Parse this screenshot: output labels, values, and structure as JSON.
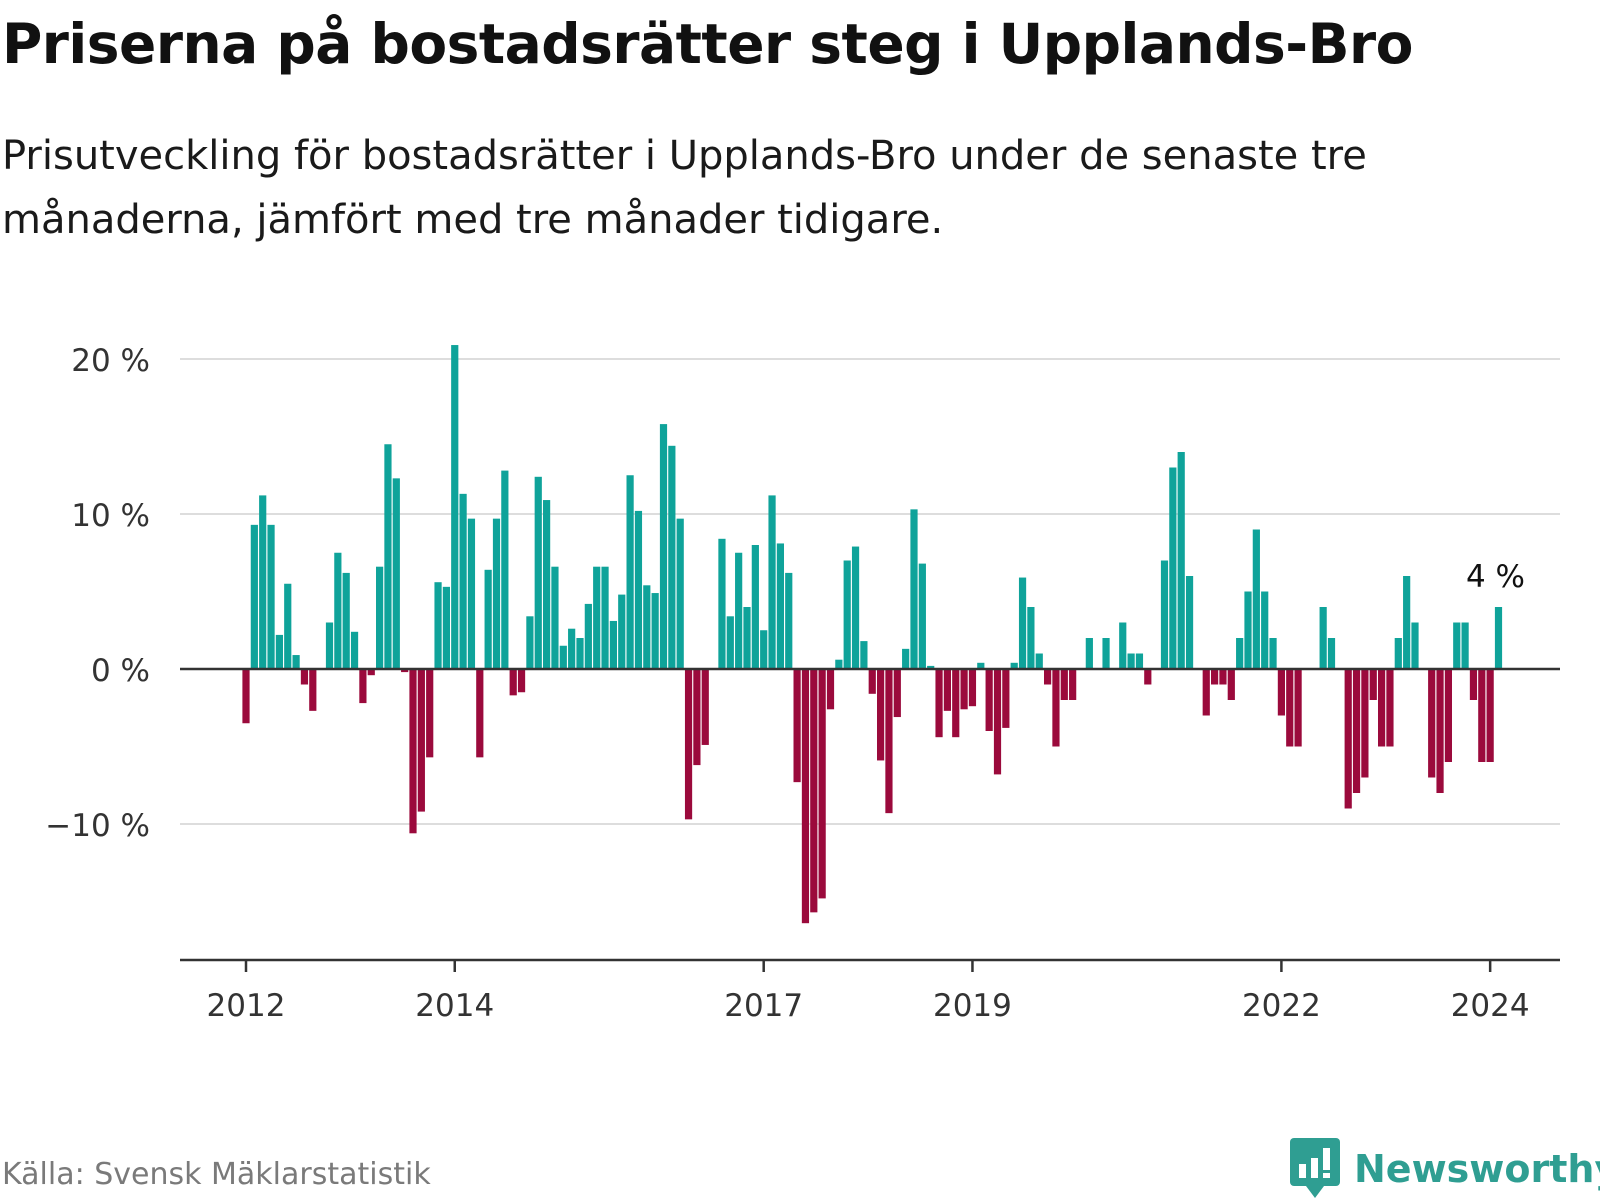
{
  "title": "Priserna på bostadsrätter steg i Upplands-Bro",
  "subtitle": "Prisutveckling för bostadsrätter i Upplands-Bro under de senaste tre månaderna, jämfört med tre månader tidigare.",
  "source": "Källa: Svensk Mäklarstatistik",
  "brand": "Newsworthy",
  "colors": {
    "positive": "#0fa39a",
    "negative": "#9b0a3c",
    "grid": "#dddddd",
    "axis": "#333333",
    "brand": "#2f9e92"
  },
  "chart_data": {
    "type": "bar",
    "title": "Priserna på bostadsrätter steg i Upplands-Bro",
    "xlabel": "",
    "ylabel": "",
    "ylim": [
      -18.5,
      21
    ],
    "y_ticks": [
      20,
      10,
      0,
      -10
    ],
    "y_tick_labels": [
      "20 %",
      "10 %",
      "0 %",
      "−10 %"
    ],
    "x_ticks": [
      {
        "label": "2012",
        "index": 0
      },
      {
        "label": "2014",
        "index": 25
      },
      {
        "label": "2017",
        "index": 62
      },
      {
        "label": "2019",
        "index": 87
      },
      {
        "label": "2022",
        "index": 124
      },
      {
        "label": "2024",
        "index": 149
      }
    ],
    "last_value_label": "4 %",
    "values": [
      -3.5,
      9.3,
      11.2,
      9.3,
      2.2,
      5.5,
      0.9,
      -1.0,
      -2.7,
      0,
      3.0,
      7.5,
      6.2,
      2.4,
      -2.2,
      -0.4,
      6.6,
      14.5,
      12.3,
      -0.2,
      -10.6,
      -9.2,
      -5.7,
      5.6,
      5.3,
      20.9,
      11.3,
      9.7,
      -5.7,
      6.4,
      9.7,
      12.8,
      -1.7,
      -1.5,
      3.4,
      12.4,
      10.9,
      6.6,
      1.5,
      2.6,
      2.0,
      4.2,
      6.6,
      6.6,
      3.1,
      4.8,
      12.5,
      10.2,
      5.4,
      4.9,
      15.8,
      14.4,
      9.7,
      -9.7,
      -6.2,
      -4.9,
      0,
      8.4,
      3.4,
      7.5,
      4.0,
      8.0,
      2.5,
      11.2,
      8.1,
      6.2,
      -7.3,
      -16.4,
      -15.7,
      -14.8,
      -2.6,
      0.6,
      7.0,
      7.9,
      1.8,
      -1.6,
      -5.9,
      -9.3,
      -3.1,
      1.3,
      10.3,
      6.8,
      0.2,
      -4.4,
      -2.7,
      -4.4,
      -2.6,
      -2.4,
      0.4,
      -4.0,
      -6.8,
      -3.8,
      0.4,
      5.9,
      4.0,
      1.0,
      -1.0,
      -5.0,
      -2.0,
      -2.0,
      0,
      2.0,
      0,
      2.0,
      0,
      3.0,
      1.0,
      1.0,
      -1.0,
      0,
      7.0,
      13.0,
      14.0,
      6.0,
      0,
      -3.0,
      -1.0,
      -1.0,
      -2.0,
      2.0,
      5.0,
      9.0,
      5.0,
      2.0,
      -3.0,
      -5.0,
      -5.0,
      0,
      0,
      4.0,
      2.0,
      0,
      -9.0,
      -8.0,
      -7.0,
      -2.0,
      -5.0,
      -5.0,
      2.0,
      6.0,
      3.0,
      0,
      -7.0,
      -8.0,
      -6.0,
      3.0,
      3.0,
      -2.0,
      -6.0,
      -6.0,
      4.0
    ]
  }
}
